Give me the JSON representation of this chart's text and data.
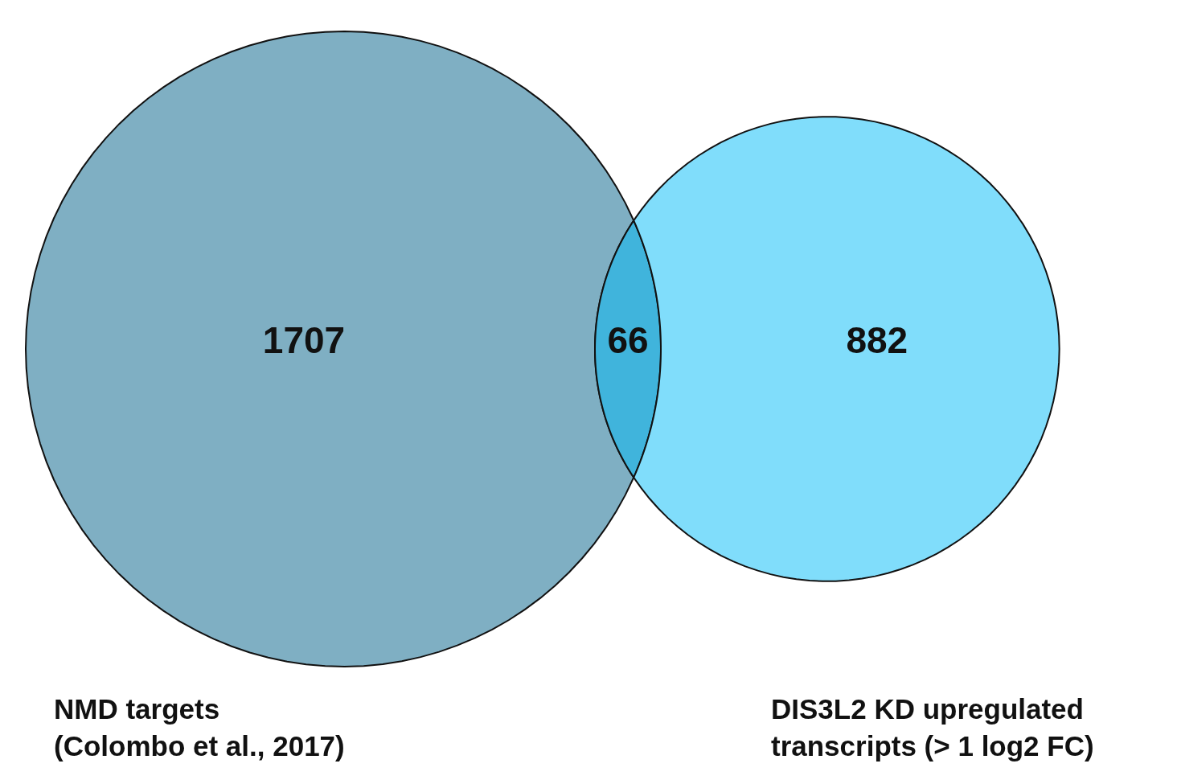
{
  "chart_data": {
    "type": "other",
    "categories": [
      "NMD targets\n(Colombo et al., 2017)",
      null,
      "DIS3L2 KD upregulated\ntranscripts (> 1 log2 FC)"
    ],
    "values": [
      1707,
      66,
      882
    ],
    "data_labels": true,
    "colors": [
      "#7fafc3",
      "#40b4dc",
      "#80ddfb"
    ]
  }
}
